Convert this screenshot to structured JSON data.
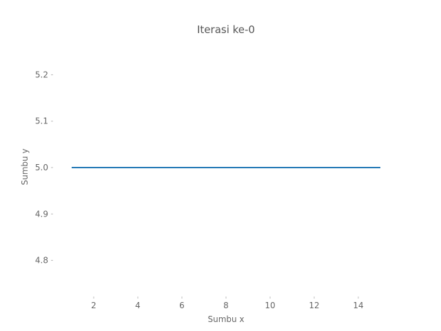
{
  "chart_data": {
    "type": "line",
    "title": "Iterasi ke-0",
    "xlabel": "Sumbu x",
    "ylabel": "Sumbu y",
    "xlim": [
      0.25,
      15.75
    ],
    "ylim": [
      4.725,
      5.275
    ],
    "xticks": [
      2,
      4,
      6,
      8,
      10,
      12,
      14
    ],
    "yticks": [
      4.8,
      4.9,
      5.0,
      5.1,
      5.2
    ],
    "ytick_labels": [
      "4.8",
      "4.9",
      "5.0",
      "5.1",
      "5.2"
    ],
    "grid": false,
    "series": [
      {
        "color": "#1f77b4",
        "x": [
          1,
          2,
          3,
          4,
          5,
          6,
          7,
          8,
          9,
          10,
          11,
          12,
          13,
          14,
          15
        ],
        "y": [
          5,
          5,
          5,
          5,
          5,
          5,
          5,
          5,
          5,
          5,
          5,
          5,
          5,
          5,
          5
        ]
      }
    ]
  }
}
